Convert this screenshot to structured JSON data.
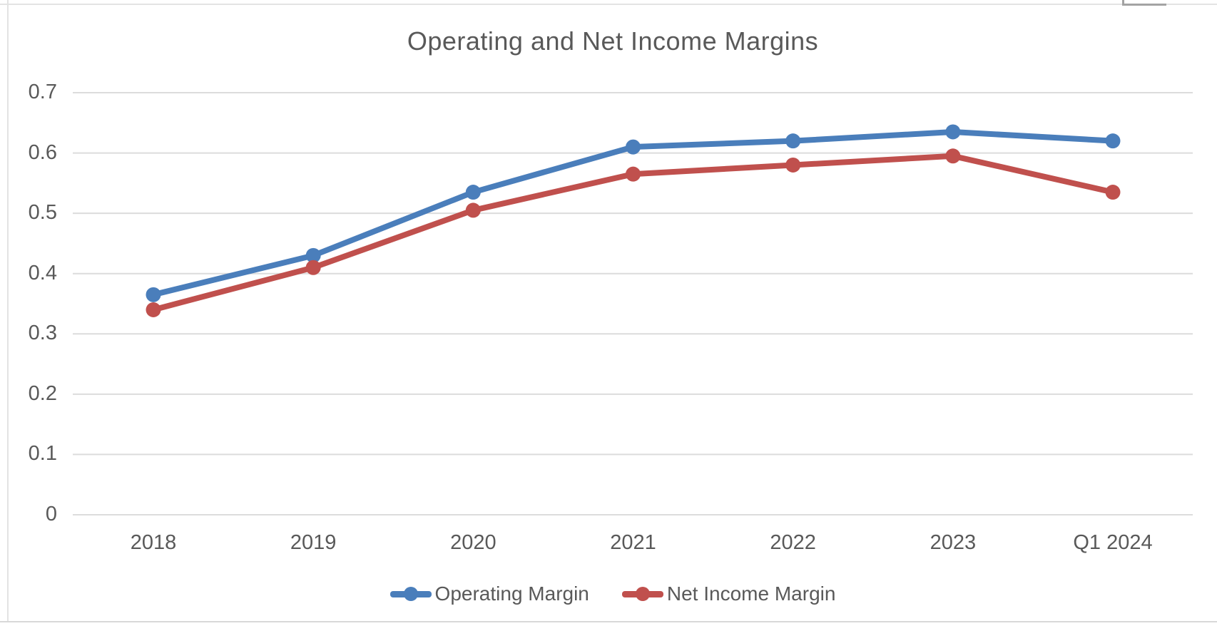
{
  "chart_data": {
    "type": "line",
    "title": "Operating and Net Income Margins",
    "categories": [
      "2018",
      "2019",
      "2020",
      "2021",
      "2022",
      "2023",
      "Q1 2024"
    ],
    "series": [
      {
        "name": "Operating Margin",
        "color": "#4A7EBB",
        "marker": "circle",
        "values": [
          0.365,
          0.43,
          0.535,
          0.61,
          0.62,
          0.635,
          0.62
        ]
      },
      {
        "name": "Net Income Margin",
        "color": "#C0504D",
        "marker": "circle",
        "values": [
          0.34,
          0.41,
          0.505,
          0.565,
          0.58,
          0.595,
          0.535
        ]
      }
    ],
    "xlabel": "",
    "ylabel": "",
    "ylim": [
      0,
      0.7
    ],
    "yticks": [
      0,
      0.1,
      0.2,
      0.3,
      0.4,
      0.5,
      0.6,
      0.7
    ],
    "grid": true,
    "legend_position": "bottom"
  },
  "colors": {
    "text": "#595959",
    "gridline": "#DCDCDC",
    "series_blue": "#4A7EBB",
    "series_red": "#C0504D",
    "frame_light": "#E3E3E3",
    "frame_dark": "#A3A3A3"
  }
}
